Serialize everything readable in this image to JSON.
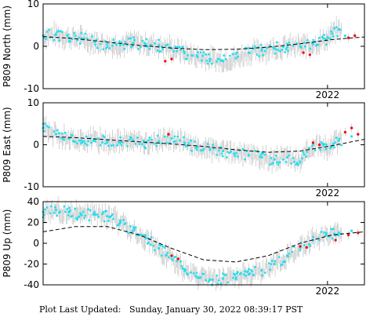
{
  "footer": {
    "label": "Plot Last Updated:",
    "timestamp": "Sunday, January 30, 2022 08:39:17 PST"
  },
  "colors": {
    "points": "#22e0f0",
    "recent_points": "#ee1111",
    "error_bars": "#c8c8c8",
    "model_line": "#000000"
  },
  "chart_data": [
    {
      "type": "scatter",
      "ylabel": "P809 North (mm)",
      "ylim": [
        -10,
        10
      ],
      "yticks": [
        10,
        0,
        -10
      ],
      "xrange": [
        0,
        100
      ],
      "xtick_label": "2022",
      "xtick_pos": 88.5,
      "grid": false,
      "points": [
        [
          0,
          2.5
        ],
        [
          4,
          2.8
        ],
        [
          8,
          2.0
        ],
        [
          12,
          1.8
        ],
        [
          16,
          1.0
        ],
        [
          20,
          0.5
        ],
        [
          24,
          0.3
        ],
        [
          28,
          0.8
        ],
        [
          32,
          0.5
        ],
        [
          36,
          0.2
        ],
        [
          40,
          -0.5
        ],
        [
          44,
          -1.5
        ],
        [
          48,
          -2.5
        ],
        [
          52,
          -3.0
        ],
        [
          56,
          -3.5
        ],
        [
          60,
          -2.8
        ],
        [
          64,
          -1.5
        ],
        [
          68,
          -1.0
        ],
        [
          72,
          -0.5
        ],
        [
          76,
          -0.2
        ],
        [
          80,
          0.0
        ],
        [
          84,
          0.5
        ],
        [
          88,
          1.5
        ],
        [
          90,
          3.0
        ],
        [
          92,
          4.0
        ],
        [
          94,
          2.5
        ]
      ],
      "recent_points": [
        [
          38,
          -3.5
        ],
        [
          40,
          -3.0
        ],
        [
          81,
          -1.5
        ],
        [
          83,
          -2.0
        ],
        [
          95,
          2.0
        ],
        [
          97,
          2.5
        ]
      ],
      "model": [
        [
          0,
          2.3
        ],
        [
          10,
          1.8
        ],
        [
          20,
          1.0
        ],
        [
          30,
          0.2
        ],
        [
          40,
          -0.4
        ],
        [
          50,
          -0.8
        ],
        [
          60,
          -0.7
        ],
        [
          70,
          -0.2
        ],
        [
          80,
          0.6
        ],
        [
          90,
          1.6
        ],
        [
          100,
          2.2
        ]
      ]
    },
    {
      "type": "scatter",
      "ylabel": "P809 East (mm)",
      "ylim": [
        -10,
        10
      ],
      "yticks": [
        10,
        0,
        -10
      ],
      "xrange": [
        0,
        100
      ],
      "xtick_label": "2022",
      "xtick_pos": 88.5,
      "grid": false,
      "points": [
        [
          0,
          4.0
        ],
        [
          4,
          2.5
        ],
        [
          8,
          1.5
        ],
        [
          12,
          1.0
        ],
        [
          16,
          1.2
        ],
        [
          20,
          0.8
        ],
        [
          24,
          0.5
        ],
        [
          28,
          1.0
        ],
        [
          32,
          0.5
        ],
        [
          36,
          0.8
        ],
        [
          40,
          1.5
        ],
        [
          44,
          0.5
        ],
        [
          48,
          -0.5
        ],
        [
          52,
          -1.0
        ],
        [
          56,
          -1.5
        ],
        [
          60,
          -2.0
        ],
        [
          64,
          -2.5
        ],
        [
          68,
          -3.0
        ],
        [
          72,
          -3.5
        ],
        [
          76,
          -3.0
        ],
        [
          80,
          -4.0
        ],
        [
          84,
          0.0
        ],
        [
          88,
          -1.0
        ],
        [
          92,
          1.0
        ],
        [
          96,
          2.0
        ]
      ],
      "recent_points": [
        [
          39,
          2.5
        ],
        [
          84,
          0.5
        ],
        [
          86,
          0.0
        ],
        [
          94,
          3.0
        ],
        [
          96,
          4.0
        ],
        [
          98,
          2.5
        ]
      ],
      "model": [
        [
          0,
          2.0
        ],
        [
          10,
          1.7
        ],
        [
          20,
          1.2
        ],
        [
          30,
          0.7
        ],
        [
          40,
          0.2
        ],
        [
          50,
          -0.4
        ],
        [
          60,
          -1.2
        ],
        [
          70,
          -1.8
        ],
        [
          80,
          -1.5
        ],
        [
          90,
          -0.2
        ],
        [
          100,
          1.3
        ]
      ]
    },
    {
      "type": "scatter",
      "ylabel": "P809 Up (mm)",
      "ylim": [
        -40,
        40
      ],
      "yticks": [
        40,
        20,
        0,
        -20,
        -40
      ],
      "xrange": [
        0,
        100
      ],
      "xtick_label": "2022",
      "xtick_pos": 88.5,
      "grid": false,
      "points": [
        [
          0,
          30
        ],
        [
          4,
          32
        ],
        [
          8,
          30
        ],
        [
          12,
          27
        ],
        [
          16,
          28
        ],
        [
          20,
          26
        ],
        [
          24,
          20
        ],
        [
          28,
          12
        ],
        [
          32,
          5
        ],
        [
          36,
          -5
        ],
        [
          40,
          -15
        ],
        [
          44,
          -25
        ],
        [
          48,
          -33
        ],
        [
          52,
          -35
        ],
        [
          56,
          -34
        ],
        [
          60,
          -33
        ],
        [
          64,
          -30
        ],
        [
          68,
          -26
        ],
        [
          72,
          -20
        ],
        [
          76,
          -12
        ],
        [
          80,
          -5
        ],
        [
          84,
          3
        ],
        [
          88,
          8
        ],
        [
          92,
          10
        ],
        [
          96,
          12
        ]
      ],
      "recent_points": [
        [
          40,
          -12
        ],
        [
          42,
          -15
        ],
        [
          80,
          -3
        ],
        [
          82,
          -4
        ],
        [
          91,
          3
        ],
        [
          95,
          8
        ],
        [
          98,
          10
        ]
      ],
      "model": [
        [
          0,
          11
        ],
        [
          10,
          16
        ],
        [
          20,
          16
        ],
        [
          30,
          8
        ],
        [
          40,
          -5
        ],
        [
          50,
          -16
        ],
        [
          60,
          -18
        ],
        [
          70,
          -12
        ],
        [
          80,
          0
        ],
        [
          90,
          8
        ],
        [
          100,
          11
        ]
      ]
    }
  ]
}
